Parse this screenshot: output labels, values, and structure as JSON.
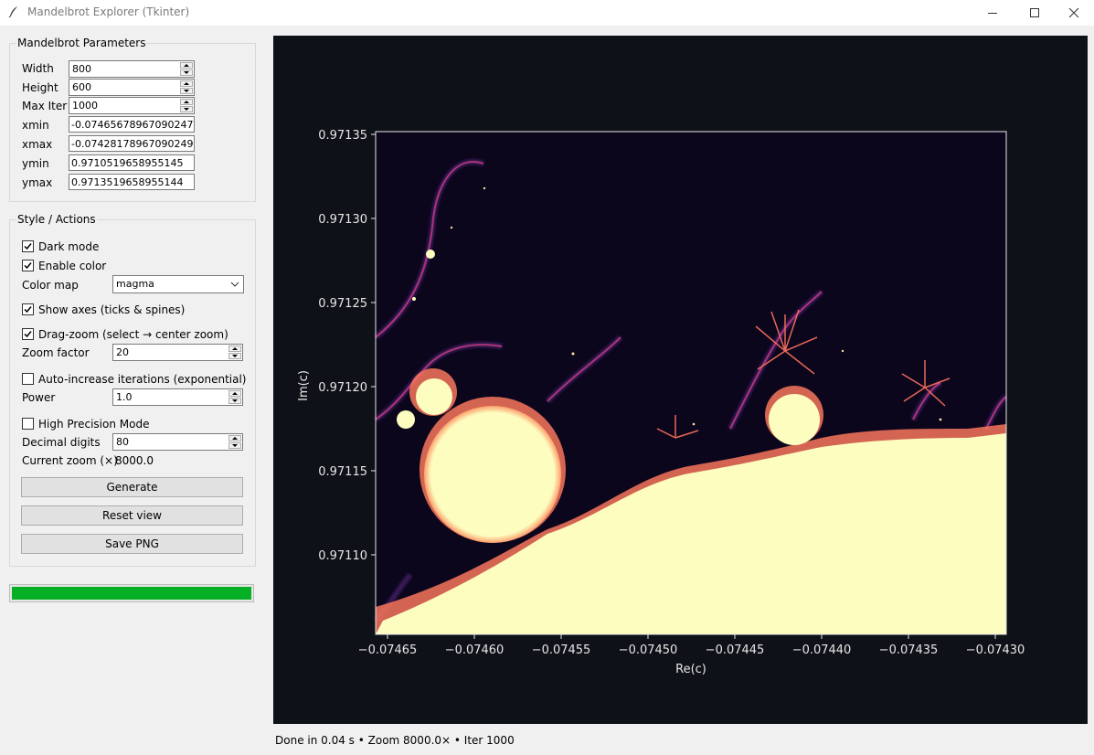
{
  "window": {
    "title": "Mandelbrot Explorer (Tkinter)",
    "controls": [
      "minimize-icon",
      "maximize-icon",
      "close-icon"
    ]
  },
  "params": {
    "title": "Mandelbrot Parameters",
    "width_label": "Width",
    "width_value": "800",
    "height_label": "Height",
    "height_value": "600",
    "maxiter_label": "Max Iter",
    "maxiter_value": "1000",
    "xmin_label": "xmin",
    "xmin_value": "-0.07465678967090247",
    "xmax_label": "xmax",
    "xmax_value": "-0.07428178967090249",
    "ymin_label": "ymin",
    "ymin_value": "0.9710519658955145",
    "ymax_label": "ymax",
    "ymax_value": "0.9713519658955144"
  },
  "style": {
    "title": "Style / Actions",
    "dark_mode_label": "Dark mode",
    "dark_mode_checked": true,
    "enable_color_label": "Enable color",
    "enable_color_checked": true,
    "colormap_label": "Color map",
    "colormap_value": "magma",
    "show_axes_label": "Show axes (ticks & spines)",
    "show_axes_checked": true,
    "drag_zoom_label": "Drag-zoom (select → center zoom)",
    "drag_zoom_checked": true,
    "zoom_factor_label": "Zoom factor",
    "zoom_factor_value": "20",
    "auto_iter_label": "Auto-increase iterations (exponential)",
    "auto_iter_checked": false,
    "power_label": "Power",
    "power_value": "1.0",
    "high_precision_label": "High Precision Mode",
    "high_precision_checked": false,
    "decimal_digits_label": "Decimal digits",
    "decimal_digits_value": "80",
    "current_zoom_label": "Current zoom (×)",
    "current_zoom_value": "8000.0",
    "generate_label": "Generate",
    "reset_label": "Reset view",
    "save_label": "Save PNG"
  },
  "progress": {
    "fraction": 1.0,
    "color": "#06b025"
  },
  "plot": {
    "background": "#0e1117",
    "colormap": "magma",
    "xlabel": "Re(c)",
    "ylabel": "Im(c)",
    "xticks": [
      "−0.07465",
      "−0.07460",
      "−0.07455",
      "−0.07450",
      "−0.07445",
      "−0.07440",
      "−0.07435",
      "−0.07430"
    ],
    "yticks": [
      "0.97110",
      "0.97115",
      "0.97120",
      "0.97125",
      "0.97130",
      "0.97135"
    ],
    "fill_color": "#fcfdbf"
  },
  "status_text": "Done in 0.04 s • Zoom 8000.0× • Iter 1000"
}
